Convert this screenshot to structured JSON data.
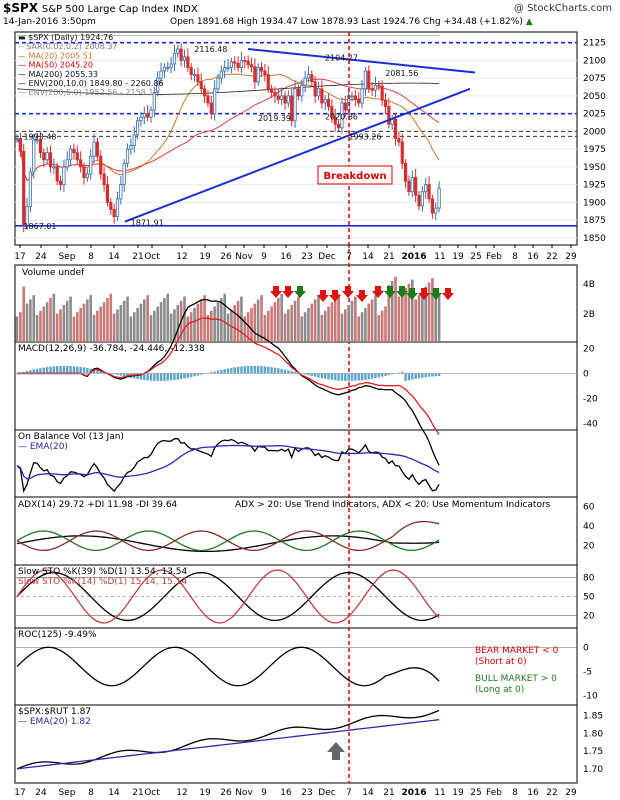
{
  "header": {
    "symbol": "$SPX",
    "name": "S&P 500 Large Cap Index",
    "exchange": "INDX",
    "watermark": "@ StockCharts.com",
    "date": "14-Jan-2016 3:50pm",
    "quote": "Open 1891.68  High 1934.47  Low 1878.93  Last 1924.76  Chg +34.48 (+1.82%)",
    "quote_arrow": "▲"
  },
  "colors": {
    "up": "#3a6fb0",
    "down": "#d32f2f",
    "trend": "#1a2ed8",
    "red_arrow": "#e01010",
    "green_arrow": "#1d7a1d",
    "macd_hist": "#5aa6d0",
    "vol_up": "#8c8c8c",
    "vol_down": "#c97878"
  },
  "price_legend": [
    {
      "text": "▬ $SPX (Daily) 1924.76",
      "color": "#1a1a1a"
    },
    {
      "text": "-- SAR(0.02,0.2) 2008.37",
      "color": "#7a7aa0"
    },
    {
      "text": "— MA(20) 2005.51",
      "color": "#c87a2a"
    },
    {
      "text": "— MA(50) 2045.20",
      "color": "#e00000"
    },
    {
      "text": "— MA(200) 2055.33",
      "color": "#111111"
    },
    {
      "text": "— ENV(200,10.0) 1849.80 - 2260.86",
      "color": "#111111"
    },
    {
      "text": "— ENV(200,5.0) 1952.56 - 2158.10",
      "color": "#888888"
    }
  ],
  "price_annotations": [
    {
      "text": "2116.48",
      "x": 58,
      "y": 2116
    },
    {
      "text": "2104.27",
      "x": 97,
      "y": 2104
    },
    {
      "text": "2081.56",
      "x": 115,
      "y": 2082
    },
    {
      "text": "2020.86",
      "x": 97,
      "y": 2021
    },
    {
      "text": "2019.39",
      "x": 77,
      "y": 2019
    },
    {
      "text": "1993.48",
      "x": 7,
      "y": 1993
    },
    {
      "text": "1993.26",
      "x": 104,
      "y": 1993
    },
    {
      "text": "1867.01",
      "x": 7,
      "y": 1867
    },
    {
      "text": "1871.91",
      "x": 39,
      "y": 1872
    }
  ],
  "breakdown_label": "Breakdown",
  "chart_data": {
    "type": "candlestick",
    "price_ticks": [
      1850,
      1875,
      1900,
      1925,
      1950,
      1975,
      2000,
      2025,
      2050,
      2075,
      2100,
      2125
    ],
    "ylim": [
      1840,
      2140
    ],
    "x_axis_labels": [
      "17",
      "24",
      "Sep",
      "8",
      "14",
      "21",
      "Oct",
      "12",
      "19",
      "26",
      "Nov",
      "9",
      "16",
      "23",
      "Dec",
      "7",
      "14",
      "21",
      "2016",
      "11",
      "19",
      "25",
      "Feb",
      "8",
      "16",
      "22",
      "29"
    ],
    "closes": [
      1990,
      1972,
      1868,
      1894,
      1943,
      1988,
      1988,
      1970,
      1960,
      1970,
      1950,
      1950,
      1930,
      1925,
      1950,
      1960,
      1975,
      1970,
      1960,
      1950,
      1935,
      1940,
      1965,
      1985,
      1965,
      1940,
      1925,
      1900,
      1890,
      1880,
      1905,
      1925,
      1955,
      1975,
      1980,
      1995,
      2015,
      2020,
      2025,
      2020,
      2030,
      2055,
      2075,
      2085,
      2090,
      2090,
      2095,
      2110,
      2116,
      2100,
      2105,
      2090,
      2080,
      2080,
      2070,
      2060,
      2050,
      2040,
      2025,
      2060,
      2075,
      2085,
      2090,
      2090,
      2098,
      2096,
      2090,
      2100,
      2099,
      2094,
      2091,
      2070,
      2090,
      2085,
      2080,
      2060,
      2055,
      2050,
      2045,
      2050,
      2040,
      2050,
      2015,
      2060,
      2050,
      2065,
      2075,
      2080,
      2070,
      2050,
      2060,
      2040,
      2045,
      2035,
      2020,
      2010,
      2005,
      2040,
      2030,
      2050,
      2050,
      2045,
      2040,
      2060,
      2085,
      2060,
      2058,
      2065,
      2064,
      2044,
      2035,
      2010,
      2017,
      1990,
      1985,
      1955,
      1930,
      1915,
      1935,
      1910,
      1895,
      1915,
      1925,
      1905,
      1885,
      1892,
      1920
    ],
    "volume_axis": [
      "4B",
      "2B"
    ],
    "panels": [
      {
        "title": "Volume undef",
        "ticks": []
      },
      {
        "title": "MACD(12,26,9) -36.784, -24.446, -12.338",
        "ticks": [
          "20",
          "0",
          "-20",
          "-40"
        ]
      },
      {
        "title": "On Balance Vol (13 Jan)",
        "subtitle": "— EMA(20)",
        "ticks": []
      },
      {
        "title": "ADX(14) 29.72 +DI 11.98 -DI 39.64",
        "note": "ADX > 20: Use Trend Indicators, ADX < 20: Use Momentum Indicators",
        "ticks": [
          "60",
          "40",
          "20"
        ]
      },
      {
        "title": "Slow STO %K(39) %D(1) 13.54, 13.54",
        "subtitle": "Slow STO %K(14) %D(1) 15.14, 15.14",
        "ticks": [
          "80",
          "50",
          "20"
        ]
      },
      {
        "title": "ROC(125) -9.49%",
        "ticks": [
          "0",
          "-5",
          "-10"
        ]
      },
      {
        "title": "$SPX:$RUT 1.87",
        "subtitle": "— EMA(20) 1.82",
        "ticks": [
          "1.85",
          "1.80",
          "1.75",
          "1.70"
        ]
      }
    ],
    "roc_notes": [
      "BEAR MARKET < 0",
      "(Short at 0)",
      "BULL MARKET > 0",
      "(Long at 0)"
    ]
  }
}
